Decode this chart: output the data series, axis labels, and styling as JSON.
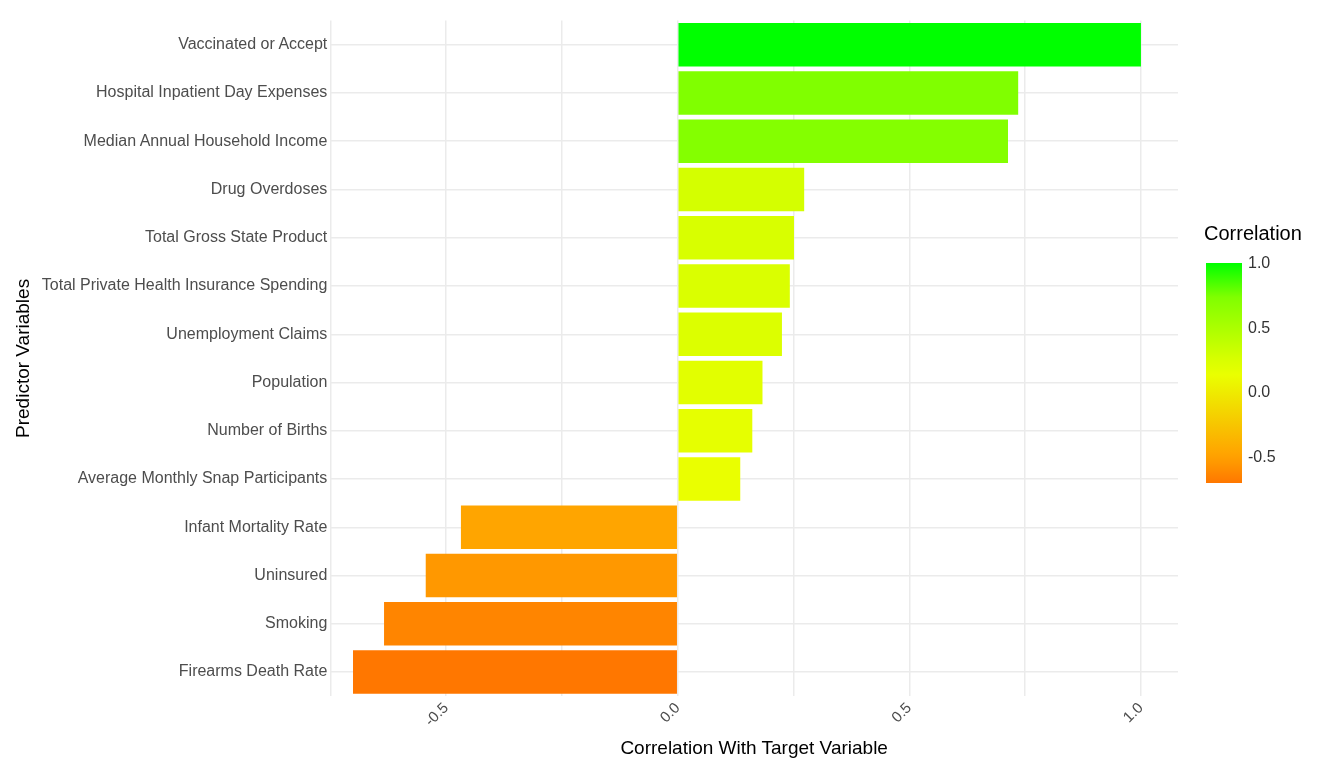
{
  "chart_data": {
    "type": "bar",
    "orientation": "horizontal",
    "categories": [
      "Vaccinated or Accept",
      "Hospital Inpatient Day Expenses",
      "Median Annual Household Income",
      "Drug Overdoses",
      "Total Gross State Product",
      "Total Private Health Insurance Spending",
      "Unemployment Claims",
      "Population",
      "Number of Births",
      "Average Monthly Snap Participants",
      "Infant Mortality Rate",
      "Uninsured",
      "Smoking",
      "Firearms Death Rate"
    ],
    "values": [
      1.0,
      0.735,
      0.713,
      0.273,
      0.251,
      0.242,
      0.225,
      0.183,
      0.161,
      0.135,
      -0.468,
      -0.544,
      -0.634,
      -0.701
    ],
    "colors": [
      "#00ff00",
      "#80ff00",
      "#84ff00",
      "#d4ff00",
      "#d8ff00",
      "#daff00",
      "#dcff00",
      "#e2ff00",
      "#e6ff00",
      "#eaff00",
      "#ffa500",
      "#ff9800",
      "#ff8500",
      "#ff7700"
    ],
    "xlabel": "Correlation With Target Variable",
    "ylabel": "Predictor Variables",
    "xlim": [
      -0.75,
      1.08
    ],
    "xticks": [
      {
        "value": -0.75,
        "label": null
      },
      -0.5,
      {
        "value": -0.25,
        "label": null
      },
      {
        "value": 0,
        "label": "0.0"
      },
      {
        "value": 0.25,
        "label": null
      },
      0.5,
      {
        "value": 0.75,
        "label": null
      },
      {
        "value": 1,
        "label": "1.0"
      }
    ],
    "grid": true,
    "legend": false,
    "clabel": "Correlation",
    "clim": [
      -0.701,
      1.0
    ],
    "cticks": [
      -0.5,
      {
        "value": 0,
        "label": "0.0"
      },
      0.5,
      {
        "value": 1,
        "label": "1.0"
      }
    ]
  }
}
